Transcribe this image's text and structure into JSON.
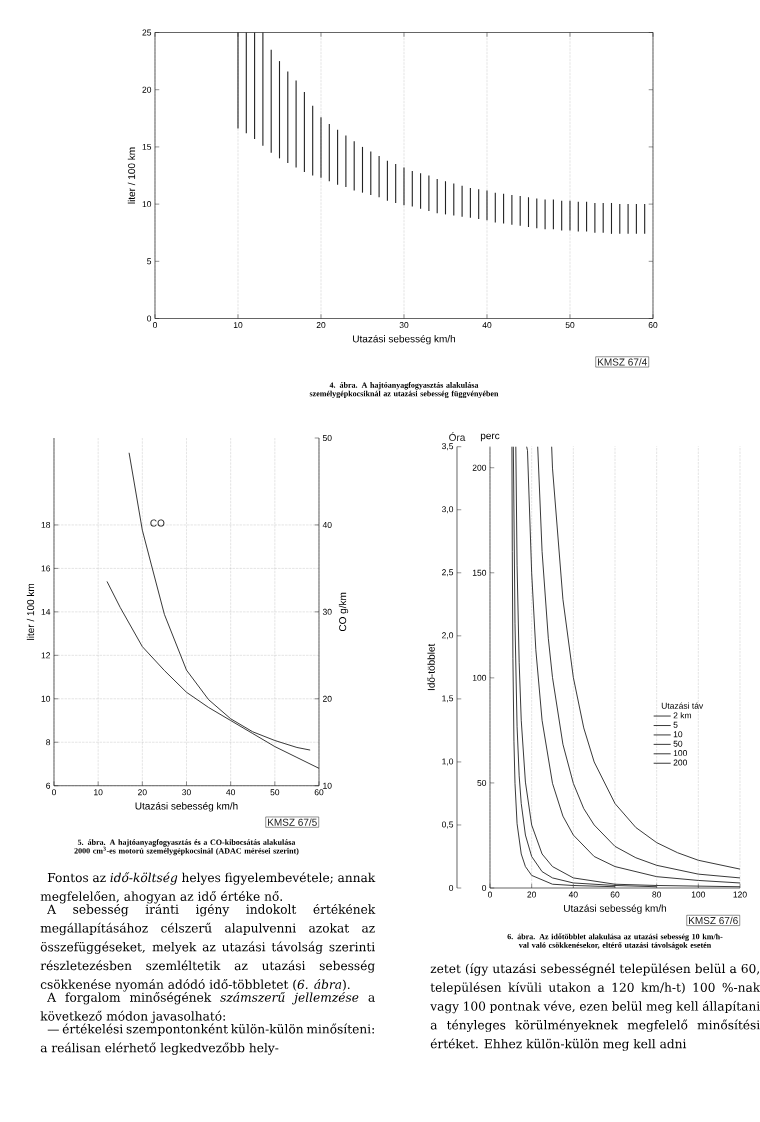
{
  "chart_data": [
    {
      "type": "bar",
      "title": "4. ábra. A hajtóanyagfogyasztás alakulása személygépkocsiknál az utazási sebesség függvényében",
      "xlabel": "Utazási sebesség km/h",
      "ylabel": "liter / 100 km",
      "color": "#222222",
      "xlim": [
        0,
        60
      ],
      "ylim": [
        0,
        25
      ],
      "xticks": [
        0,
        10,
        20,
        30,
        40,
        50,
        60
      ],
      "yticks": [
        0,
        5,
        10,
        15,
        20,
        25
      ],
      "grid": "x",
      "annotations": [
        "KMSZ 67/4"
      ],
      "x": [
        10,
        11,
        12,
        13,
        14,
        15,
        16,
        17,
        18,
        19,
        20,
        21,
        22,
        23,
        24,
        25,
        26,
        27,
        28,
        29,
        30,
        31,
        32,
        33,
        34,
        35,
        36,
        37,
        38,
        39,
        40,
        41,
        42,
        43,
        44,
        45,
        46,
        47,
        48,
        49,
        50,
        51,
        52,
        53,
        54,
        55,
        56,
        57,
        58,
        59
      ],
      "base": [
        16.6,
        16.2,
        15.7,
        15.1,
        14.5,
        14.0,
        13.6,
        13.2,
        12.8,
        12.5,
        12.3,
        12.0,
        11.7,
        11.5,
        11.2,
        11.0,
        10.8,
        10.6,
        10.3,
        10.1,
        9.9,
        9.8,
        9.6,
        9.4,
        9.2,
        9.1,
        9.0,
        8.9,
        8.8,
        8.7,
        8.6,
        8.4,
        8.3,
        8.2,
        8.1,
        8.0,
        7.9,
        7.8,
        7.8,
        7.7,
        7.7,
        7.6,
        7.6,
        7.5,
        7.5,
        7.4,
        7.4,
        7.4,
        7.4,
        7.4
      ],
      "values": [
        8.4,
        8.8,
        9.3,
        9.9,
        9.0,
        8.5,
        8.0,
        7.6,
        7.0,
        6.1,
        5.3,
        5.0,
        4.8,
        4.5,
        4.3,
        4.0,
        3.8,
        3.6,
        3.5,
        3.4,
        3.3,
        3.1,
        3.1,
        3.1,
        3.0,
        2.9,
        2.8,
        2.7,
        2.6,
        2.6,
        2.6,
        2.6,
        2.6,
        2.6,
        2.6,
        2.6,
        2.6,
        2.6,
        2.6,
        2.6,
        2.6,
        2.6,
        2.6,
        2.6,
        2.6,
        2.7,
        2.6,
        2.6,
        2.6,
        2.6
      ]
    },
    {
      "type": "line",
      "title": "5. ábra. A hajtóanyagfogyasztás és a CO-kibocsátás alakulása 2000 cm$^{3}$-es motorú személygépkocsinál (ADAC mérései szerint)",
      "xlabel": "Utazási sebesség km/h",
      "ylabel": "liter / 100 km",
      "y2label": "CO g/km",
      "xlim": [
        0,
        60
      ],
      "ylim": [
        6,
        22
      ],
      "y2lim": [
        10,
        50
      ],
      "xticks": [
        0,
        10,
        20,
        30,
        40,
        50,
        60
      ],
      "yticks": [
        6,
        8,
        10,
        12,
        14,
        16,
        18
      ],
      "y2ticks": [
        10,
        20,
        30,
        40,
        50
      ],
      "grid": true,
      "annotations": [
        "KMSZ 67/5"
      ],
      "series": [
        {
          "color": "#222222",
          "x": [
            12,
            15,
            20,
            25,
            30,
            35,
            40,
            45,
            50,
            55,
            60
          ],
          "values": [
            15.4,
            14.2,
            12.4,
            11.3,
            10.3,
            9.6,
            9.0,
            8.4,
            7.8,
            7.3,
            6.8
          ]
        },
        {
          "name": "CO",
          "axis": "y2",
          "color": "#222222",
          "x": [
            17,
            20,
            22,
            25,
            30,
            35,
            40,
            45,
            50,
            55,
            58
          ],
          "values": [
            48.3,
            39.4,
            35.5,
            29.7,
            23.3,
            19.9,
            17.7,
            16.2,
            15.2,
            14.4,
            14.1
          ]
        }
      ]
    },
    {
      "type": "line",
      "title": "6. ábra. Az időtöbblet alakulása az utazási sebesség 10 km/h-val való csökkenésekor, eltérő utazási távolságok esetén",
      "xlabel": "Utazási sebesség km/h",
      "ylabel": "Idő-többlet",
      "y2label": "perc",
      "legend_title": "Utazási táv",
      "legend": "right",
      "grid": "x",
      "xlim": [
        0,
        120
      ],
      "ylim": [
        0,
        3.5
      ],
      "y2lim": [
        0,
        210
      ],
      "xticks": [
        0,
        20,
        40,
        60,
        80,
        100,
        120
      ],
      "yticks": [
        0,
        {
          "value": 0.5,
          "label": "0,5"
        },
        {
          "value": 1.0,
          "label": "1,0"
        },
        {
          "value": 1.5,
          "label": "1,5"
        },
        {
          "value": 2.0,
          "label": "2,0"
        },
        {
          "value": 2.5,
          "label": "2,5"
        },
        {
          "value": 3.0,
          "label": "3,0"
        },
        {
          "value": 3.5,
          "label": "3,5"
        }
      ],
      "y2ticks": [
        0,
        50,
        100,
        150,
        200
      ],
      "annotations": [
        "Óra",
        "KMSZ 67/6"
      ],
      "series": [
        {
          "name": "2 km",
          "color": "#222222",
          "x": [
            10.53,
            10.7,
            11,
            11.5,
            12,
            13,
            15,
            17,
            20,
            30,
            40,
            60
          ],
          "values": [
            3.5,
            2.67,
            1.82,
            1.16,
            0.83,
            0.51,
            0.27,
            0.17,
            0.1,
            0.03,
            0.02,
            0.01
          ]
        },
        {
          "name": "5",
          "color": "#222222",
          "x": [
            11.2,
            12,
            13,
            14,
            15,
            17,
            20,
            25,
            30,
            40,
            60,
            80
          ],
          "values": [
            3.5,
            2.1,
            1.28,
            0.89,
            0.67,
            0.42,
            0.25,
            0.13,
            0.08,
            0.04,
            0.02,
            0.01
          ]
        },
        {
          "name": "10",
          "color": "#222222",
          "x": [
            12.4,
            13,
            14,
            15,
            17,
            20,
            25,
            30,
            40,
            60,
            80,
            120
          ],
          "values": [
            3.5,
            2.56,
            1.79,
            1.33,
            0.84,
            0.5,
            0.27,
            0.17,
            0.08,
            0.03,
            0.02,
            0.01
          ]
        },
        {
          "name": "50",
          "color": "#222222",
          "x": [
            17.6,
            18,
            20,
            22,
            25,
            30,
            35,
            40,
            50,
            60,
            80,
            100,
            120
          ],
          "values": [
            3.5,
            3.47,
            2.5,
            1.89,
            1.33,
            0.83,
            0.57,
            0.42,
            0.25,
            0.17,
            0.09,
            0.06,
            0.04
          ]
        },
        {
          "name": "100",
          "color": "#222222",
          "x": [
            22.9,
            25,
            28,
            30,
            35,
            40,
            45,
            50,
            60,
            70,
            80,
            100,
            120
          ],
          "values": [
            3.5,
            2.67,
            1.98,
            1.67,
            1.14,
            0.83,
            0.63,
            0.5,
            0.33,
            0.24,
            0.18,
            0.11,
            0.08
          ]
        },
        {
          "name": "200",
          "color": "#222222",
          "x": [
            29.6,
            30,
            35,
            40,
            45,
            50,
            60,
            70,
            80,
            90,
            100,
            120
          ],
          "values": [
            3.5,
            3.33,
            2.29,
            1.67,
            1.27,
            1.0,
            0.67,
            0.48,
            0.36,
            0.28,
            0.22,
            0.15
          ]
        }
      ]
    },
    {
      "type": "other",
      "annotations": [
        "Fontos az *idő-költség* helyes figyelembevétele; annak megfelelően, ahogyan az idő értéke nő.",
        "A sebesség iránti igény indokolt értékének megállapításához célszerű alapulvenni azokat az összefüggéseket, melyek az utazási távolság szerinti részletezésben szemléltetik az utazási sebesség csökkenése nyomán adódó idő-többletet (*6. ábra*).",
        "A forgalom minőségének *számszerű jellemzése* a következő módon javasolható:",
        "— értékelési szempontonként külön-külön minősíteni: a reálisan elérhető legkedvezőbb hely-",
        "zetet (így utazási sebességnél településen belül a 60, településen kívüli utakon a 120 km/h-t) 100 %-nak vagy 100 pontnak véve, ezen belül meg kell állapítani a tényleges körülményeknek megfelelő minősítési értéket. Ehhez külön-külön meg kell adni"
      ]
    }
  ]
}
